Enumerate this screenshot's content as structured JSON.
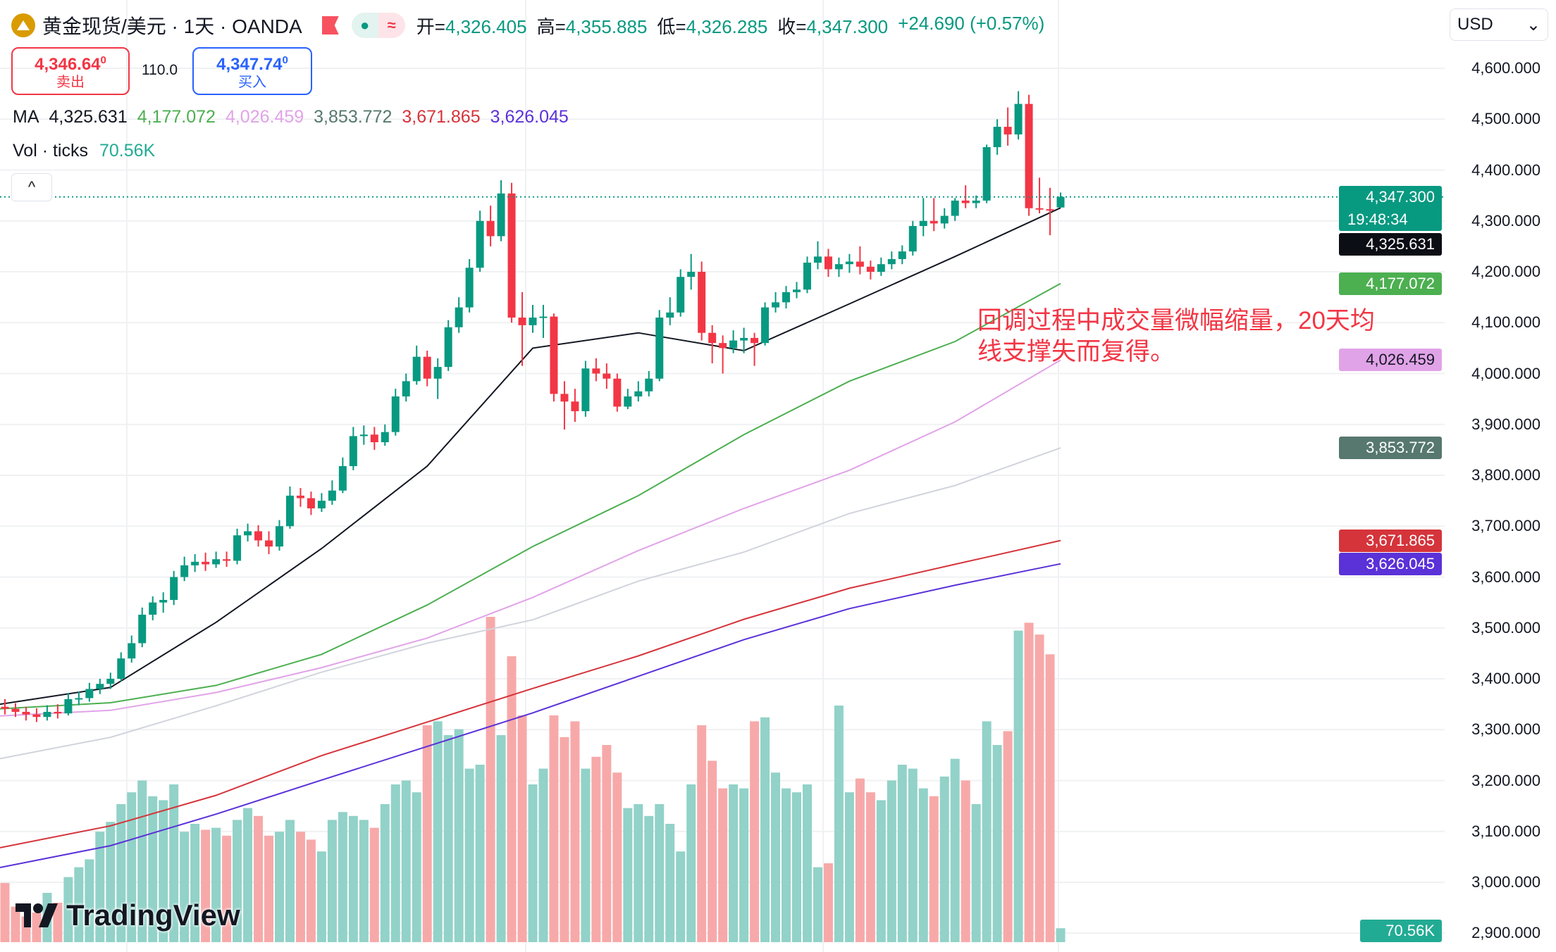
{
  "header": {
    "title": "黄金现货/美元 · 1天 · OANDA",
    "ohlc": [
      {
        "label": "开=",
        "value": "4,326.405"
      },
      {
        "label": "高=",
        "value": "4,355.885"
      },
      {
        "label": "低=",
        "value": "4,326.285"
      },
      {
        "label": "收=",
        "value": "4,347.300"
      }
    ],
    "change": "+24.690 (+0.57%)",
    "pill_dot": "●",
    "pill_wave": "≈"
  },
  "trade": {
    "sell_price": "4,346.64",
    "sell_sup": "0",
    "sell_label": "卖出",
    "spread": "110.0",
    "buy_price": "4,347.74",
    "buy_sup": "0",
    "buy_label": "买入"
  },
  "ma_legend": {
    "label": "MA",
    "values": [
      {
        "text": "4,325.631",
        "color": "#131722"
      },
      {
        "text": "4,177.072",
        "color": "#4caf50"
      },
      {
        "text": "4,026.459",
        "color": "#e1a3e8"
      },
      {
        "text": "3,853.772",
        "color": "#56786e"
      },
      {
        "text": "3,671.865",
        "color": "#d5343b"
      },
      {
        "text": "3,626.045",
        "color": "#5b31d8"
      }
    ]
  },
  "vol_legend": {
    "label": "Vol · ticks",
    "value": "70.56K"
  },
  "collapse_icon": "^",
  "currency": {
    "selected": "USD",
    "chevron": "⌄"
  },
  "annotation": {
    "line1": "回调过程中成交量微幅缩量，20天均",
    "line2": "线支撑失而复得。"
  },
  "logo": {
    "text": "TradingView"
  },
  "colors": {
    "up": "#089981",
    "down": "#f23645",
    "vol_up": "#92d2c8",
    "vol_down": "#f7a9a9"
  },
  "price_axis": {
    "ticks": [
      "4,600.000",
      "4,500.000",
      "4,400.000",
      "4,300.000",
      "4,200.000",
      "4,100.000",
      "4,000.000",
      "3,900.000",
      "3,800.000",
      "3,700.000",
      "3,600.000",
      "3,500.000",
      "3,400.000",
      "3,300.000",
      "3,200.000",
      "3,100.000",
      "3,000.000",
      "2,900.000"
    ],
    "labels": [
      {
        "text": "4,347.300",
        "sub": "19:48:34",
        "value": 4347.3,
        "bg": "#089981",
        "fg": "#ffffff"
      },
      {
        "text": "4,325.631",
        "value": 4325.631,
        "bg": "#0c0e15",
        "fg": "#ffffff"
      },
      {
        "text": "4,177.072",
        "value": 4177.072,
        "bg": "#4caf50",
        "fg": "#ffffff"
      },
      {
        "text": "4,026.459",
        "value": 4026.459,
        "bg": "#e1a3e8",
        "fg": "#131722"
      },
      {
        "text": "3,853.772",
        "value": 3853.772,
        "bg": "#56786e",
        "fg": "#ffffff"
      },
      {
        "text": "3,671.865",
        "value": 3671.865,
        "bg": "#d5343b",
        "fg": "#ffffff"
      },
      {
        "text": "3,626.045",
        "value": 3626.045,
        "bg": "#5b31d8",
        "fg": "#ffffff"
      }
    ],
    "volume_label": "70.56K"
  },
  "chart_data": {
    "type": "candlestick",
    "ylim": [
      2900,
      4650
    ],
    "last_price": 4347.3,
    "candles": [
      [
        3345,
        3360,
        3330,
        3341
      ],
      [
        3341,
        3352,
        3325,
        3335
      ],
      [
        3335,
        3345,
        3318,
        3330
      ],
      [
        3330,
        3342,
        3315,
        3325
      ],
      [
        3325,
        3348,
        3318,
        3335
      ],
      [
        3335,
        3350,
        3322,
        3332
      ],
      [
        3332,
        3372,
        3328,
        3360
      ],
      [
        3360,
        3375,
        3348,
        3362
      ],
      [
        3362,
        3392,
        3355,
        3380
      ],
      [
        3380,
        3400,
        3370,
        3390
      ],
      [
        3390,
        3412,
        3380,
        3400
      ],
      [
        3400,
        3452,
        3395,
        3440
      ],
      [
        3440,
        3485,
        3432,
        3470
      ],
      [
        3470,
        3540,
        3462,
        3526
      ],
      [
        3526,
        3562,
        3515,
        3550
      ],
      [
        3550,
        3570,
        3530,
        3555
      ],
      [
        3555,
        3612,
        3545,
        3600
      ],
      [
        3600,
        3640,
        3592,
        3623
      ],
      [
        3623,
        3645,
        3610,
        3630
      ],
      [
        3630,
        3648,
        3612,
        3625
      ],
      [
        3625,
        3650,
        3618,
        3635
      ],
      [
        3635,
        3650,
        3620,
        3632
      ],
      [
        3632,
        3695,
        3625,
        3682
      ],
      [
        3682,
        3705,
        3670,
        3690
      ],
      [
        3690,
        3702,
        3660,
        3672
      ],
      [
        3672,
        3690,
        3645,
        3660
      ],
      [
        3660,
        3712,
        3652,
        3700
      ],
      [
        3700,
        3778,
        3695,
        3760
      ],
      [
        3760,
        3775,
        3738,
        3755
      ],
      [
        3755,
        3768,
        3722,
        3735
      ],
      [
        3735,
        3765,
        3728,
        3750
      ],
      [
        3750,
        3790,
        3742,
        3770
      ],
      [
        3770,
        3835,
        3765,
        3818
      ],
      [
        3818,
        3895,
        3810,
        3877
      ],
      [
        3877,
        3898,
        3860,
        3880
      ],
      [
        3880,
        3895,
        3850,
        3865
      ],
      [
        3865,
        3900,
        3858,
        3885
      ],
      [
        3885,
        3970,
        3878,
        3955
      ],
      [
        3955,
        4000,
        3945,
        3985
      ],
      [
        3985,
        4055,
        3978,
        4033
      ],
      [
        4033,
        4045,
        3975,
        3990
      ],
      [
        3990,
        4030,
        3950,
        4013
      ],
      [
        4013,
        4105,
        4005,
        4091
      ],
      [
        4091,
        4150,
        4080,
        4130
      ],
      [
        4130,
        4225,
        4120,
        4208
      ],
      [
        4208,
        4320,
        4200,
        4300
      ],
      [
        4300,
        4330,
        4250,
        4270
      ],
      [
        4270,
        4380,
        4260,
        4354
      ],
      [
        4354,
        4375,
        4100,
        4110
      ],
      [
        4110,
        4160,
        4015,
        4095
      ],
      [
        4095,
        4135,
        4080,
        4110
      ],
      [
        4110,
        4135,
        4070,
        4112
      ],
      [
        4112,
        4118,
        3945,
        3960
      ],
      [
        3960,
        3985,
        3890,
        3945
      ],
      [
        3945,
        3970,
        3905,
        3926
      ],
      [
        3926,
        4025,
        3915,
        4010
      ],
      [
        4010,
        4030,
        3985,
        4000
      ],
      [
        4000,
        4020,
        3970,
        3990
      ],
      [
        3990,
        4000,
        3925,
        3935
      ],
      [
        3935,
        3970,
        3930,
        3955
      ],
      [
        3955,
        3985,
        3945,
        3965
      ],
      [
        3965,
        4005,
        3955,
        3990
      ],
      [
        3990,
        4125,
        3985,
        4110
      ],
      [
        4110,
        4150,
        4095,
        4120
      ],
      [
        4120,
        4205,
        4112,
        4190
      ],
      [
        4190,
        4235,
        4165,
        4200
      ],
      [
        4200,
        4220,
        4065,
        4080
      ],
      [
        4080,
        4095,
        4020,
        4060
      ],
      [
        4060,
        4075,
        4000,
        4050
      ],
      [
        4050,
        4085,
        4040,
        4065
      ],
      [
        4065,
        4090,
        4040,
        4070
      ],
      [
        4070,
        4080,
        4015,
        4060
      ],
      [
        4060,
        4140,
        4055,
        4130
      ],
      [
        4130,
        4160,
        4120,
        4140
      ],
      [
        4140,
        4172,
        4128,
        4160
      ],
      [
        4160,
        4180,
        4148,
        4165
      ],
      [
        4165,
        4230,
        4158,
        4218
      ],
      [
        4218,
        4260,
        4205,
        4230
      ],
      [
        4230,
        4245,
        4190,
        4205
      ],
      [
        4205,
        4228,
        4190,
        4215
      ],
      [
        4215,
        4235,
        4198,
        4220
      ],
      [
        4220,
        4250,
        4195,
        4210
      ],
      [
        4210,
        4222,
        4185,
        4200
      ],
      [
        4200,
        4228,
        4192,
        4215
      ],
      [
        4215,
        4240,
        4205,
        4225
      ],
      [
        4225,
        4252,
        4215,
        4240
      ],
      [
        4240,
        4300,
        4232,
        4290
      ],
      [
        4290,
        4345,
        4270,
        4300
      ],
      [
        4300,
        4345,
        4280,
        4295
      ],
      [
        4295,
        4325,
        4285,
        4310
      ],
      [
        4310,
        4345,
        4300,
        4340
      ],
      [
        4340,
        4370,
        4325,
        4335
      ],
      [
        4335,
        4350,
        4325,
        4340
      ],
      [
        4340,
        4450,
        4335,
        4445
      ],
      [
        4445,
        4500,
        4430,
        4485
      ],
      [
        4485,
        4523,
        4448,
        4470
      ],
      [
        4470,
        4555,
        4460,
        4530
      ],
      [
        4530,
        4548,
        4310,
        4325
      ],
      [
        4325,
        4385,
        4315,
        4323
      ],
      [
        4323,
        4365,
        4272,
        4322
      ],
      [
        4326.405,
        4355.885,
        4326.285,
        4347.3
      ]
    ],
    "volume_k": [
      300,
      180,
      130,
      150,
      250,
      200,
      330,
      380,
      420,
      560,
      610,
      700,
      760,
      820,
      740,
      720,
      800,
      560,
      600,
      570,
      580,
      540,
      620,
      680,
      640,
      540,
      560,
      620,
      560,
      520,
      460,
      620,
      660,
      640,
      620,
      580,
      700,
      800,
      820,
      760,
      1100,
      1120,
      1050,
      1080,
      880,
      900,
      1650,
      1050,
      1450,
      1150,
      800,
      880,
      1150,
      1040,
      1120,
      880,
      940,
      1000,
      860,
      680,
      700,
      640,
      700,
      600,
      460,
      800,
      1100,
      920,
      780,
      800,
      780,
      1120,
      1140,
      860,
      780,
      760,
      800,
      380,
      400,
      1200,
      760,
      830,
      760,
      720,
      820,
      900,
      880,
      780,
      740,
      840,
      930,
      820,
      700,
      1120,
      1000,
      1070,
      1580,
      1620,
      1560,
      1460,
      70.56
    ],
    "ma_series": [
      {
        "color": "#131722",
        "values_every_10_bars": [
          3350,
          3383,
          3511,
          3656,
          3818,
          4050,
          4080,
          4045,
          4137,
          4230,
          4325.631
        ]
      },
      {
        "color": "#4caf50",
        "values_every_10_bars": [
          3341,
          3353,
          3387,
          3448,
          3545,
          3660,
          3760,
          3880,
          3985,
          4063,
          4177.072
        ]
      },
      {
        "color": "#e1a3e8",
        "values_every_10_bars": [
          3327,
          3338,
          3373,
          3422,
          3480,
          3560,
          3652,
          3735,
          3810,
          3905,
          4026.459
        ]
      },
      {
        "color": "#d1d4dc",
        "values_every_10_bars": [
          3243,
          3285,
          3347,
          3413,
          3470,
          3516,
          3592,
          3649,
          3725,
          3780,
          3853.772
        ]
      },
      {
        "color": "#d5343b",
        "values_every_10_bars": [
          3068,
          3111,
          3171,
          3249,
          3315,
          3381,
          3445,
          3517,
          3578,
          3625,
          3671.865
        ]
      },
      {
        "color": "#5b31d8",
        "values_every_10_bars": [
          3029,
          3072,
          3134,
          3201,
          3267,
          3333,
          3405,
          3477,
          3538,
          3584,
          3626.045
        ]
      }
    ]
  }
}
